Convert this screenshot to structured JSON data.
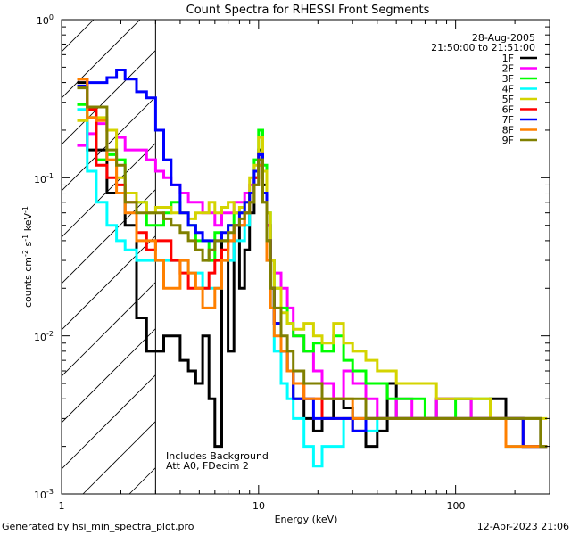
{
  "chart_data": {
    "type": "line",
    "title": "Count Spectra for RHESSI Front Segments",
    "xlabel": "Energy (keV)",
    "ylabel_parts": [
      "counts cm",
      "-2",
      " s",
      "-1",
      " keV",
      "-1"
    ],
    "xscale": "log",
    "yscale": "log",
    "xlim": [
      1,
      300
    ],
    "ylim": [
      0.001,
      1
    ],
    "x_tick_labels": [
      {
        "value": 1,
        "label": "1"
      },
      {
        "value": 10,
        "label": "10"
      },
      {
        "value": 100,
        "label": "100"
      }
    ],
    "y_tick_labels": [
      {
        "value": 1,
        "base": "10",
        "exp": "0"
      },
      {
        "value": 0.1,
        "base": "10",
        "exp": "-1"
      },
      {
        "value": 0.01,
        "base": "10",
        "exp": "-2"
      },
      {
        "value": 0.001,
        "base": "10",
        "exp": "-3"
      }
    ],
    "shaded_region_max_keV": 3,
    "date": "28-Aug-2005",
    "time_range": "21:50:00 to 21:51:00",
    "annotations": [
      "Includes Background",
      "Att A0, FDecim 2"
    ],
    "legend_position": "top-right",
    "series": [
      {
        "name": "1F",
        "color": "#000000",
        "x": [
          1.2,
          1.35,
          1.5,
          1.7,
          1.9,
          2.1,
          2.4,
          2.7,
          3.0,
          3.3,
          3.6,
          4.0,
          4.4,
          4.8,
          5.2,
          5.6,
          6.0,
          6.5,
          7.0,
          7.5,
          8.0,
          8.5,
          9.0,
          9.5,
          10.0,
          10.5,
          11.0,
          11.5,
          12,
          13,
          14,
          15,
          17,
          19,
          21,
          24,
          27,
          30,
          35,
          40,
          45,
          50,
          60,
          70,
          80,
          100,
          120,
          150,
          180,
          220,
          270
        ],
        "y": [
          0.4,
          0.15,
          0.15,
          0.08,
          0.08,
          0.05,
          0.013,
          0.008,
          0.008,
          0.01,
          0.01,
          0.007,
          0.006,
          0.005,
          0.01,
          0.004,
          0.002,
          0.04,
          0.008,
          0.05,
          0.02,
          0.035,
          0.06,
          0.1,
          0.15,
          0.09,
          0.05,
          0.02,
          0.012,
          0.008,
          0.006,
          0.004,
          0.003,
          0.0025,
          0.003,
          0.004,
          0.0035,
          0.003,
          0.002,
          0.0025,
          0.005,
          0.003,
          0.003,
          0.003,
          0.004,
          0.004,
          0.003,
          0.004,
          0.003,
          0.003,
          0.002
        ]
      },
      {
        "name": "2F",
        "color": "#ff00ff",
        "x": [
          1.2,
          1.35,
          1.5,
          1.7,
          1.9,
          2.1,
          2.4,
          2.7,
          3.0,
          3.3,
          3.6,
          4.0,
          4.4,
          4.8,
          5.2,
          5.6,
          6.0,
          6.5,
          7.0,
          7.5,
          8.0,
          8.5,
          9.0,
          9.5,
          10.0,
          10.5,
          11.0,
          11.5,
          12,
          13,
          14,
          15,
          17,
          19,
          21,
          24,
          27,
          30,
          35,
          40,
          45,
          50,
          60,
          70,
          80,
          100,
          120,
          150,
          180,
          220,
          270
        ],
        "y": [
          0.16,
          0.19,
          0.22,
          0.2,
          0.18,
          0.15,
          0.15,
          0.13,
          0.11,
          0.1,
          0.09,
          0.08,
          0.07,
          0.07,
          0.06,
          0.06,
          0.05,
          0.06,
          0.06,
          0.07,
          0.07,
          0.08,
          0.09,
          0.1,
          0.12,
          0.08,
          0.05,
          0.03,
          0.025,
          0.02,
          0.015,
          0.01,
          0.008,
          0.006,
          0.005,
          0.004,
          0.006,
          0.005,
          0.004,
          0.003,
          0.003,
          0.004,
          0.003,
          0.003,
          0.004,
          0.004,
          0.003,
          0.003,
          0.003,
          0.002,
          0.002
        ]
      },
      {
        "name": "3F",
        "color": "#00ff00",
        "x": [
          1.2,
          1.35,
          1.5,
          1.7,
          1.9,
          2.1,
          2.4,
          2.7,
          3.0,
          3.3,
          3.6,
          4.0,
          4.4,
          4.8,
          5.2,
          5.6,
          6.0,
          6.5,
          7.0,
          7.5,
          8.0,
          8.5,
          9.0,
          9.5,
          10.0,
          10.5,
          11.0,
          11.5,
          12,
          13,
          14,
          15,
          17,
          19,
          21,
          24,
          27,
          30,
          35,
          40,
          45,
          50,
          60,
          70,
          80,
          100,
          120,
          150,
          180,
          220,
          270
        ],
        "y": [
          0.29,
          0.24,
          0.13,
          0.14,
          0.13,
          0.08,
          0.07,
          0.05,
          0.05,
          0.06,
          0.07,
          0.06,
          0.05,
          0.04,
          0.04,
          0.03,
          0.045,
          0.04,
          0.05,
          0.06,
          0.06,
          0.07,
          0.08,
          0.13,
          0.2,
          0.12,
          0.06,
          0.03,
          0.02,
          0.015,
          0.012,
          0.01,
          0.008,
          0.009,
          0.008,
          0.01,
          0.007,
          0.006,
          0.005,
          0.005,
          0.004,
          0.004,
          0.004,
          0.003,
          0.003,
          0.004,
          0.004,
          0.003,
          0.003,
          0.002,
          0.002
        ]
      },
      {
        "name": "4F",
        "color": "#00ffff",
        "x": [
          1.2,
          1.35,
          1.5,
          1.7,
          1.9,
          2.1,
          2.4,
          2.7,
          3.0,
          3.3,
          3.6,
          4.0,
          4.4,
          4.8,
          5.2,
          5.6,
          6.0,
          6.5,
          7.0,
          7.5,
          8.0,
          8.5,
          9.0,
          9.5,
          10.0,
          10.5,
          11.0,
          11.5,
          12,
          13,
          14,
          15,
          17,
          19,
          21,
          24,
          27,
          30,
          35,
          40,
          45,
          50,
          60,
          70,
          80,
          100,
          120,
          150,
          180,
          220,
          270
        ],
        "y": [
          0.27,
          0.11,
          0.07,
          0.05,
          0.04,
          0.035,
          0.03,
          0.03,
          0.03,
          0.03,
          0.03,
          0.03,
          0.025,
          0.025,
          0.02,
          0.02,
          0.02,
          0.03,
          0.03,
          0.04,
          0.04,
          0.05,
          0.07,
          0.1,
          0.12,
          0.07,
          0.03,
          0.015,
          0.008,
          0.005,
          0.004,
          0.003,
          0.002,
          0.0015,
          0.002,
          0.002,
          0.003,
          0.0025,
          0.0025,
          0.003,
          0.003,
          0.003,
          0.003,
          0.003,
          0.003,
          0.003,
          0.003,
          0.003,
          0.002,
          0.002,
          0.002
        ]
      },
      {
        "name": "5F",
        "color": "#d4d400",
        "x": [
          1.2,
          1.35,
          1.5,
          1.7,
          1.9,
          2.1,
          2.4,
          2.7,
          3.0,
          3.3,
          3.6,
          4.0,
          4.4,
          4.8,
          5.2,
          5.6,
          6.0,
          6.5,
          7.0,
          7.5,
          8.0,
          8.5,
          9.0,
          9.5,
          10.0,
          10.5,
          11.0,
          11.5,
          12,
          13,
          14,
          15,
          17,
          19,
          21,
          24,
          27,
          30,
          35,
          40,
          45,
          50,
          60,
          70,
          80,
          100,
          120,
          150,
          180,
          220,
          270
        ],
        "y": [
          0.23,
          0.27,
          0.24,
          0.2,
          0.1,
          0.08,
          0.07,
          0.06,
          0.065,
          0.065,
          0.06,
          0.06,
          0.055,
          0.06,
          0.06,
          0.07,
          0.06,
          0.065,
          0.07,
          0.06,
          0.065,
          0.07,
          0.1,
          0.12,
          0.18,
          0.11,
          0.06,
          0.03,
          0.02,
          0.014,
          0.012,
          0.011,
          0.012,
          0.01,
          0.009,
          0.012,
          0.009,
          0.008,
          0.007,
          0.006,
          0.006,
          0.005,
          0.005,
          0.005,
          0.004,
          0.004,
          0.004,
          0.003,
          0.003,
          0.003,
          0.003
        ]
      },
      {
        "name": "6F",
        "color": "#ff0000",
        "x": [
          1.2,
          1.35,
          1.5,
          1.7,
          1.9,
          2.1,
          2.4,
          2.7,
          3.0,
          3.3,
          3.6,
          4.0,
          4.4,
          4.8,
          5.2,
          5.6,
          6.0,
          6.5,
          7.0,
          7.5,
          8.0,
          8.5,
          9.0,
          9.5,
          10.0,
          10.5,
          11.0,
          11.5,
          12,
          13,
          14,
          15,
          17,
          19,
          21,
          24,
          27,
          30,
          35,
          40,
          45,
          50,
          60,
          70,
          80,
          100,
          120,
          150,
          180,
          220,
          270
        ],
        "y": [
          0.42,
          0.27,
          0.12,
          0.1,
          0.09,
          0.07,
          0.045,
          0.035,
          0.04,
          0.04,
          0.03,
          0.025,
          0.02,
          0.02,
          0.02,
          0.025,
          0.03,
          0.035,
          0.04,
          0.05,
          0.05,
          0.06,
          0.08,
          0.1,
          0.14,
          0.08,
          0.04,
          0.02,
          0.012,
          0.008,
          0.006,
          0.005,
          0.004,
          0.004,
          0.003,
          0.003,
          0.003,
          0.0025,
          0.003,
          0.003,
          0.003,
          0.003,
          0.003,
          0.003,
          0.003,
          0.003,
          0.003,
          0.003,
          0.003,
          0.002,
          0.002
        ]
      },
      {
        "name": "7F",
        "color": "#0000ff",
        "x": [
          1.2,
          1.35,
          1.5,
          1.7,
          1.9,
          2.1,
          2.4,
          2.7,
          3.0,
          3.3,
          3.6,
          4.0,
          4.4,
          4.8,
          5.2,
          5.6,
          6.0,
          6.5,
          7.0,
          7.5,
          8.0,
          8.5,
          9.0,
          9.5,
          10.0,
          10.5,
          11.0,
          11.5,
          12,
          13,
          14,
          15,
          17,
          19,
          21,
          24,
          27,
          30,
          35,
          40,
          45,
          50,
          60,
          70,
          80,
          100,
          120,
          150,
          180,
          220,
          270
        ],
        "y": [
          0.38,
          0.4,
          0.4,
          0.43,
          0.48,
          0.42,
          0.35,
          0.32,
          0.2,
          0.13,
          0.09,
          0.06,
          0.05,
          0.045,
          0.04,
          0.04,
          0.04,
          0.045,
          0.05,
          0.05,
          0.06,
          0.07,
          0.08,
          0.11,
          0.14,
          0.08,
          0.04,
          0.02,
          0.012,
          0.008,
          0.006,
          0.004,
          0.004,
          0.003,
          0.003,
          0.003,
          0.003,
          0.0025,
          0.003,
          0.003,
          0.003,
          0.003,
          0.003,
          0.003,
          0.003,
          0.003,
          0.003,
          0.003,
          0.003,
          0.002,
          0.002
        ]
      },
      {
        "name": "8F",
        "color": "#ff8000",
        "x": [
          1.2,
          1.35,
          1.5,
          1.7,
          1.9,
          2.1,
          2.4,
          2.7,
          3.0,
          3.3,
          3.6,
          4.0,
          4.4,
          4.8,
          5.2,
          5.6,
          6.0,
          6.5,
          7.0,
          7.5,
          8.0,
          8.5,
          9.0,
          9.5,
          10.0,
          10.5,
          11.0,
          11.5,
          12,
          13,
          14,
          15,
          17,
          19,
          21,
          24,
          27,
          30,
          35,
          40,
          45,
          50,
          60,
          70,
          80,
          100,
          120,
          150,
          180,
          220,
          270
        ],
        "y": [
          0.42,
          0.24,
          0.23,
          0.13,
          0.08,
          0.06,
          0.04,
          0.04,
          0.03,
          0.02,
          0.02,
          0.03,
          0.025,
          0.02,
          0.015,
          0.015,
          0.02,
          0.03,
          0.04,
          0.05,
          0.05,
          0.06,
          0.07,
          0.09,
          0.12,
          0.07,
          0.03,
          0.015,
          0.01,
          0.008,
          0.006,
          0.005,
          0.004,
          0.004,
          0.004,
          0.004,
          0.004,
          0.003,
          0.003,
          0.003,
          0.003,
          0.003,
          0.003,
          0.003,
          0.003,
          0.003,
          0.003,
          0.003,
          0.002,
          0.002,
          0.002
        ]
      },
      {
        "name": "9F",
        "color": "#808000",
        "x": [
          1.2,
          1.35,
          1.5,
          1.7,
          1.9,
          2.1,
          2.4,
          2.7,
          3.0,
          3.3,
          3.6,
          4.0,
          4.4,
          4.8,
          5.2,
          5.6,
          6.0,
          6.5,
          7.0,
          7.5,
          8.0,
          8.5,
          9.0,
          9.5,
          10.0,
          10.5,
          11.0,
          11.5,
          12,
          13,
          14,
          15,
          17,
          19,
          21,
          24,
          27,
          30,
          35,
          40,
          45,
          50,
          60,
          70,
          80,
          100,
          120,
          150,
          180,
          220,
          270
        ],
        "y": [
          0.37,
          0.28,
          0.28,
          0.15,
          0.12,
          0.07,
          0.06,
          0.06,
          0.06,
          0.055,
          0.05,
          0.045,
          0.04,
          0.035,
          0.03,
          0.035,
          0.04,
          0.04,
          0.045,
          0.05,
          0.055,
          0.06,
          0.07,
          0.09,
          0.13,
          0.07,
          0.04,
          0.02,
          0.015,
          0.01,
          0.008,
          0.006,
          0.005,
          0.005,
          0.004,
          0.004,
          0.004,
          0.004,
          0.003,
          0.003,
          0.003,
          0.003,
          0.003,
          0.003,
          0.003,
          0.003,
          0.003,
          0.003,
          0.003,
          0.003,
          0.002
        ]
      }
    ]
  },
  "footer": {
    "generated_by": "Generated by hsi_min_spectra_plot.pro",
    "timestamp": "12-Apr-2023 21:06"
  }
}
